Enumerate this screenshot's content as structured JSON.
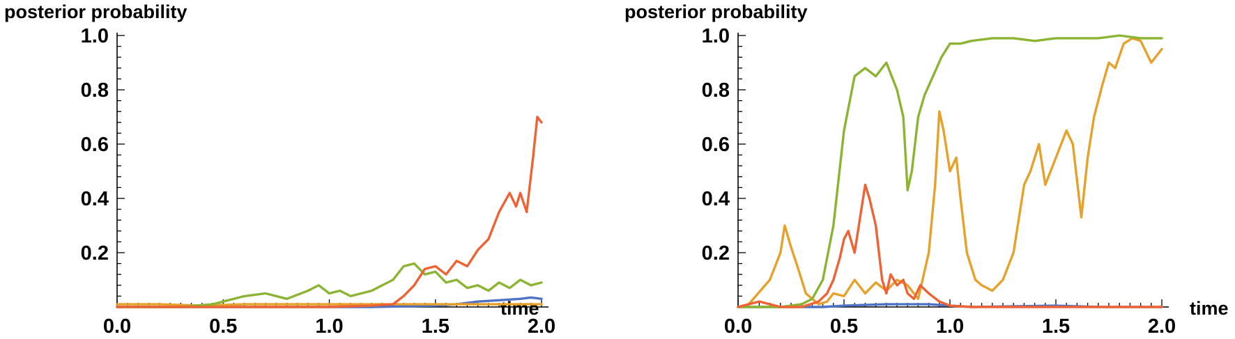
{
  "chart_data": [
    {
      "type": "line",
      "ylabel": "posterior probability",
      "xlabel": "time",
      "xlim": [
        0,
        2.0
      ],
      "ylim": [
        0,
        1.0
      ],
      "xticks": [
        "0.0",
        "0.5",
        "1.0",
        "1.5",
        "2.0"
      ],
      "yticks": [
        "0.2",
        "0.4",
        "0.6",
        "0.8",
        "1.0"
      ],
      "grid": false,
      "series": [
        {
          "color": "#4f73c4",
          "x": [
            0,
            0.4,
            0.8,
            1.2,
            1.5,
            1.6,
            1.7,
            1.8,
            1.9,
            1.95,
            2.0
          ],
          "values": [
            0,
            0,
            0,
            0,
            0.005,
            0.01,
            0.02,
            0.025,
            0.03,
            0.035,
            0.03
          ]
        },
        {
          "color": "#e6a12a",
          "x": [
            0,
            0.2,
            0.4,
            0.6,
            0.8,
            1.0,
            1.2,
            1.4,
            1.6,
            1.8,
            2.0
          ],
          "values": [
            0.01,
            0.01,
            0.005,
            0.01,
            0.01,
            0.01,
            0.01,
            0.01,
            0.01,
            0.01,
            0.01
          ]
        },
        {
          "color": "#8bb433",
          "x": [
            0,
            0.3,
            0.45,
            0.5,
            0.6,
            0.7,
            0.8,
            0.9,
            0.95,
            1.0,
            1.05,
            1.1,
            1.2,
            1.25,
            1.3,
            1.35,
            1.4,
            1.45,
            1.5,
            1.55,
            1.6,
            1.65,
            1.7,
            1.75,
            1.8,
            1.85,
            1.9,
            1.95,
            2.0
          ],
          "values": [
            0,
            0,
            0.01,
            0.02,
            0.04,
            0.05,
            0.03,
            0.06,
            0.08,
            0.05,
            0.06,
            0.04,
            0.06,
            0.08,
            0.1,
            0.15,
            0.16,
            0.12,
            0.13,
            0.09,
            0.1,
            0.07,
            0.08,
            0.06,
            0.09,
            0.07,
            0.1,
            0.08,
            0.09
          ]
        },
        {
          "color": "#ee6233",
          "x": [
            0,
            1.0,
            1.2,
            1.3,
            1.35,
            1.4,
            1.45,
            1.5,
            1.55,
            1.6,
            1.65,
            1.7,
            1.75,
            1.8,
            1.85,
            1.88,
            1.9,
            1.93,
            1.96,
            1.98,
            2.0
          ],
          "values": [
            0,
            0,
            0.005,
            0.01,
            0.04,
            0.08,
            0.14,
            0.15,
            0.12,
            0.17,
            0.15,
            0.21,
            0.25,
            0.35,
            0.42,
            0.37,
            0.42,
            0.35,
            0.55,
            0.7,
            0.68
          ]
        }
      ]
    },
    {
      "type": "line",
      "ylabel": "posterior probability",
      "xlabel": "time",
      "xlim": [
        0,
        2.0
      ],
      "ylim": [
        0,
        1.0
      ],
      "xticks": [
        "0.0",
        "0.5",
        "1.0",
        "1.5",
        "2.0"
      ],
      "yticks": [
        "0.2",
        "0.4",
        "0.6",
        "0.8",
        "1.0"
      ],
      "grid": false,
      "series": [
        {
          "color": "#4f73c4",
          "x": [
            0,
            0.4,
            0.5,
            0.7,
            0.9,
            1.0,
            1.1,
            1.5,
            1.7,
            2.0
          ],
          "values": [
            0,
            0,
            0.005,
            0.01,
            0.01,
            0.005,
            0,
            0.005,
            0,
            0
          ]
        },
        {
          "color": "#e6a12a",
          "x": [
            0,
            0.05,
            0.15,
            0.2,
            0.22,
            0.25,
            0.28,
            0.32,
            0.35,
            0.38,
            0.42,
            0.45,
            0.5,
            0.55,
            0.6,
            0.65,
            0.7,
            0.75,
            0.8,
            0.85,
            0.9,
            0.93,
            0.95,
            0.97,
            1.0,
            1.03,
            1.05,
            1.08,
            1.12,
            1.15,
            1.2,
            1.25,
            1.3,
            1.35,
            1.38,
            1.42,
            1.45,
            1.5,
            1.55,
            1.58,
            1.62,
            1.65,
            1.68,
            1.72,
            1.75,
            1.78,
            1.82,
            1.86,
            1.9,
            1.95,
            2.0
          ],
          "values": [
            0,
            0.01,
            0.1,
            0.2,
            0.3,
            0.22,
            0.15,
            0.05,
            0.03,
            0.01,
            0.02,
            0.05,
            0.04,
            0.1,
            0.05,
            0.09,
            0.06,
            0.1,
            0.08,
            0.03,
            0.2,
            0.45,
            0.72,
            0.65,
            0.5,
            0.55,
            0.4,
            0.2,
            0.1,
            0.08,
            0.06,
            0.1,
            0.2,
            0.45,
            0.5,
            0.6,
            0.45,
            0.55,
            0.65,
            0.6,
            0.33,
            0.55,
            0.7,
            0.82,
            0.9,
            0.88,
            0.97,
            0.99,
            0.98,
            0.9,
            0.95
          ]
        },
        {
          "color": "#8bb433",
          "x": [
            0,
            0.2,
            0.3,
            0.35,
            0.4,
            0.45,
            0.5,
            0.55,
            0.6,
            0.65,
            0.7,
            0.75,
            0.78,
            0.8,
            0.82,
            0.85,
            0.88,
            0.92,
            0.96,
            1.0,
            1.05,
            1.1,
            1.2,
            1.3,
            1.4,
            1.5,
            1.6,
            1.7,
            1.8,
            1.9,
            2.0
          ],
          "values": [
            0,
            0,
            0.01,
            0.03,
            0.1,
            0.3,
            0.65,
            0.85,
            0.88,
            0.85,
            0.9,
            0.8,
            0.7,
            0.43,
            0.5,
            0.7,
            0.78,
            0.85,
            0.92,
            0.97,
            0.97,
            0.98,
            0.99,
            0.99,
            0.98,
            0.99,
            0.99,
            0.99,
            1.0,
            0.99,
            0.99
          ]
        },
        {
          "color": "#ee6233",
          "x": [
            0,
            0.1,
            0.2,
            0.3,
            0.38,
            0.42,
            0.45,
            0.48,
            0.5,
            0.52,
            0.55,
            0.58,
            0.6,
            0.62,
            0.65,
            0.68,
            0.7,
            0.72,
            0.75,
            0.78,
            0.8,
            0.83,
            0.86,
            0.9,
            0.95,
            1.0,
            1.1,
            1.5,
            2.0
          ],
          "values": [
            0,
            0.02,
            0,
            0,
            0.02,
            0.05,
            0.1,
            0.18,
            0.25,
            0.28,
            0.2,
            0.35,
            0.45,
            0.4,
            0.3,
            0.1,
            0.05,
            0.12,
            0.08,
            0.1,
            0.05,
            0.03,
            0.08,
            0.05,
            0.02,
            0.005,
            0,
            0,
            0
          ]
        }
      ]
    }
  ]
}
